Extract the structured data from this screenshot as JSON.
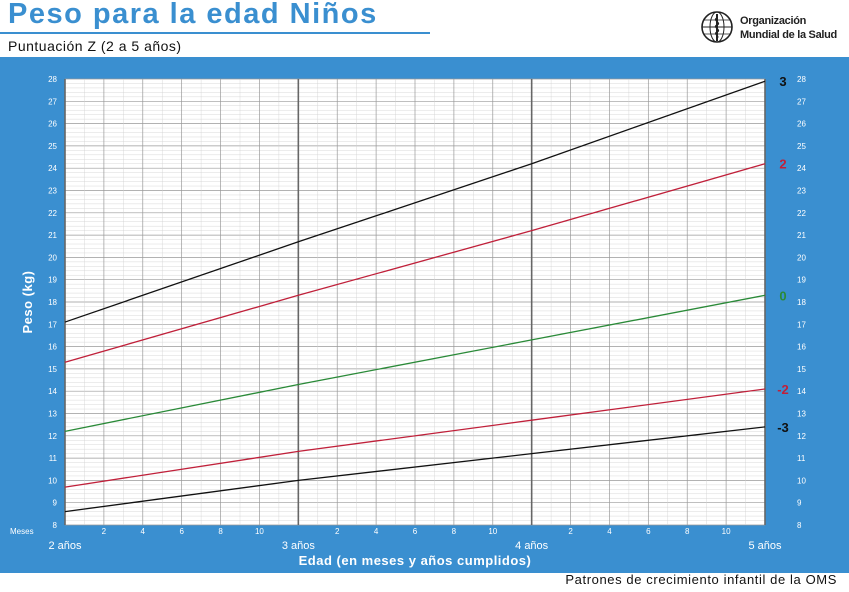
{
  "header": {
    "title": "Peso para la edad Niños",
    "subtitle": "Puntuación Z (2 a 5 años)",
    "org_line1": "Organización",
    "org_line2": "Mundial de la Salud",
    "logo_icon": "who-emblem-icon"
  },
  "footer": {
    "text": "Patrones de crecimiento infantil de la OMS"
  },
  "colors": {
    "panel": "#3a8fd0",
    "plot_bg": "#ffffff",
    "grid_minor": "#cfcfcf",
    "grid_major": "#999999",
    "line_black": "#111111",
    "line_red": "#c0203a",
    "line_green": "#2a8a38"
  },
  "chart_data": {
    "type": "line",
    "title": "Peso para la edad Niños",
    "subtitle": "Puntuación Z (2 a 5 años)",
    "xlabel": "Edad (en meses y años cumplidos)",
    "ylabel": "Peso (kg)",
    "x_unit_label": "Meses",
    "xlim": [
      24,
      60
    ],
    "ylim": [
      8,
      28
    ],
    "grid": true,
    "y_ticks": [
      8,
      9,
      10,
      11,
      12,
      13,
      14,
      15,
      16,
      17,
      18,
      19,
      20,
      21,
      22,
      23,
      24,
      25,
      26,
      27,
      28
    ],
    "x_month_ticks": [
      {
        "x": 26,
        "label": "2"
      },
      {
        "x": 28,
        "label": "4"
      },
      {
        "x": 30,
        "label": "6"
      },
      {
        "x": 32,
        "label": "8"
      },
      {
        "x": 34,
        "label": "10"
      },
      {
        "x": 38,
        "label": "2"
      },
      {
        "x": 40,
        "label": "4"
      },
      {
        "x": 42,
        "label": "6"
      },
      {
        "x": 44,
        "label": "8"
      },
      {
        "x": 46,
        "label": "10"
      },
      {
        "x": 50,
        "label": "2"
      },
      {
        "x": 52,
        "label": "4"
      },
      {
        "x": 54,
        "label": "6"
      },
      {
        "x": 56,
        "label": "8"
      },
      {
        "x": 58,
        "label": "10"
      }
    ],
    "x_year_labels": [
      {
        "x": 24,
        "label": "2 años"
      },
      {
        "x": 36,
        "label": "3 años"
      },
      {
        "x": 48,
        "label": "4 años"
      },
      {
        "x": 60,
        "label": "5 años"
      }
    ],
    "series": [
      {
        "name": "3",
        "color": "#111111",
        "x": [
          24,
          36,
          48,
          60
        ],
        "y": [
          17.1,
          20.7,
          24.2,
          27.9
        ]
      },
      {
        "name": "2",
        "color": "#c0203a",
        "x": [
          24,
          36,
          48,
          60
        ],
        "y": [
          15.3,
          18.3,
          21.2,
          24.2
        ]
      },
      {
        "name": "0",
        "color": "#2a8a38",
        "x": [
          24,
          36,
          48,
          60
        ],
        "y": [
          12.2,
          14.3,
          16.3,
          18.3
        ]
      },
      {
        "name": "-2",
        "color": "#c0203a",
        "x": [
          24,
          36,
          48,
          60
        ],
        "y": [
          9.7,
          11.3,
          12.7,
          14.1
        ]
      },
      {
        "name": "-3",
        "color": "#111111",
        "x": [
          24,
          36,
          48,
          60
        ],
        "y": [
          8.6,
          10.0,
          11.2,
          12.4
        ]
      }
    ]
  }
}
